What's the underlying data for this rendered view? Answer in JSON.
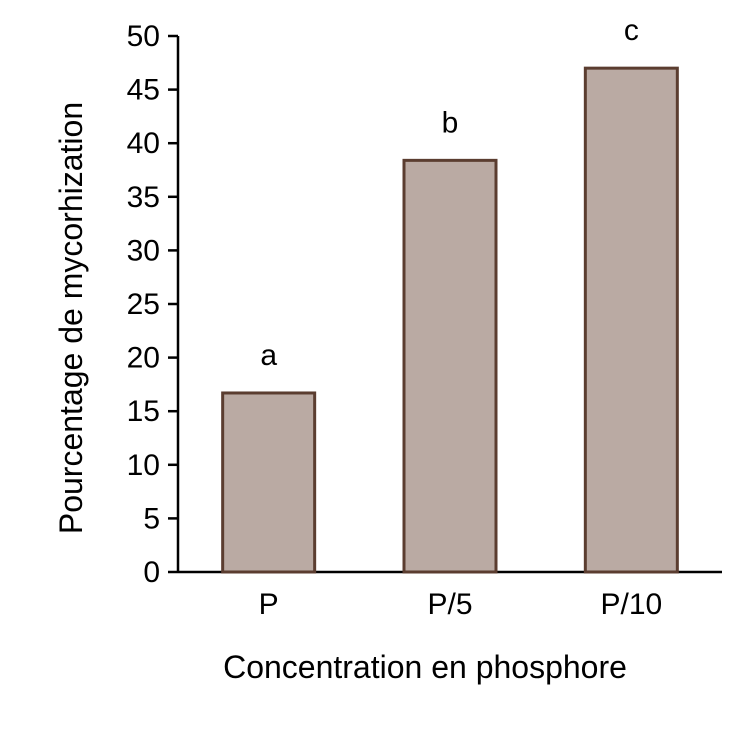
{
  "chart_data": {
    "type": "bar",
    "categories": [
      "P",
      "P/5",
      "P/10"
    ],
    "values": [
      16.7,
      38.4,
      47.0
    ],
    "annotations": [
      "a",
      "b",
      "c"
    ],
    "xlabel": "Concentration en phosphore",
    "ylabel": "Pourcentage de mycorhization",
    "ylim": [
      0,
      50
    ],
    "yticks": [
      "0",
      "5",
      "10",
      "15",
      "20",
      "25",
      "30",
      "35",
      "40",
      "45",
      "50"
    ],
    "grid": false,
    "legend": "none",
    "bar_fill": "#baaaa3",
    "bar_stroke": "#5b3d30"
  }
}
